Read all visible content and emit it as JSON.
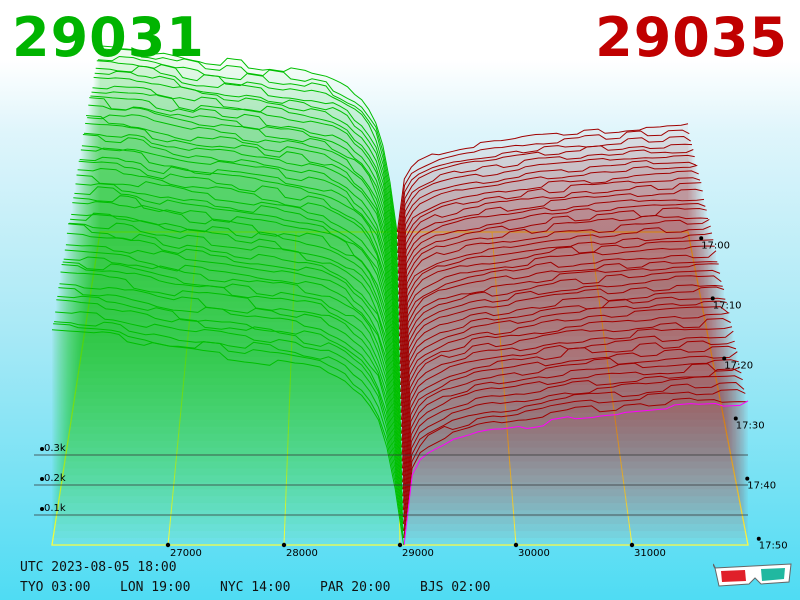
{
  "header": {
    "bid_price": "29031",
    "ask_price": "29035"
  },
  "footer": {
    "utc": "UTC 2023-08-05 18:00",
    "clocks": [
      {
        "label": "TYO 03:00"
      },
      {
        "label": "LON 19:00"
      },
      {
        "label": "NYC 14:00"
      },
      {
        "label": "PAR 20:00"
      },
      {
        "label": "BJS 02:00"
      }
    ]
  },
  "colors": {
    "bid": "#00b400",
    "ask": "#c00000",
    "bid_line": "#00bf00",
    "ask_line": "#a00000",
    "floor_line": "#ffff44",
    "current_ask_line": "#ff00ff"
  },
  "icons": {
    "glasses": "3d-glasses-icon"
  },
  "chart_data": {
    "type": "area",
    "x_ticks": [
      {
        "value": 27000,
        "label": "27000"
      },
      {
        "value": 28000,
        "label": "28000"
      },
      {
        "value": 29000,
        "label": "29000"
      },
      {
        "value": 30000,
        "label": "30000"
      },
      {
        "value": 31000,
        "label": "31000"
      }
    ],
    "y_ticks": [
      {
        "value": 100,
        "label": "0.1k"
      },
      {
        "value": 200,
        "label": "0.2k"
      },
      {
        "value": 300,
        "label": "0.3k"
      }
    ],
    "time_ticks": [
      "17:00",
      "17:10",
      "17:20",
      "17:30",
      "17:40",
      "17:50"
    ],
    "xlim": [
      26000,
      32000
    ],
    "bid_price": 29031,
    "ask_price": 29035,
    "series": [
      {
        "side": "bid",
        "x": [
          26000,
          26500,
          27000,
          27500,
          28000,
          28300,
          28500,
          28700,
          28850,
          28950,
          29031
        ],
        "cumulative_volume": [
          1010,
          990,
          930,
          900,
          860,
          830,
          780,
          700,
          560,
          300,
          0
        ]
      },
      {
        "side": "ask",
        "x": [
          29035,
          29100,
          29200,
          29400,
          29700,
          30000,
          30500,
          31000,
          31500,
          32000
        ],
        "cumulative_volume": [
          0,
          280,
          370,
          420,
          460,
          480,
          520,
          540,
          560,
          570
        ]
      }
    ]
  }
}
